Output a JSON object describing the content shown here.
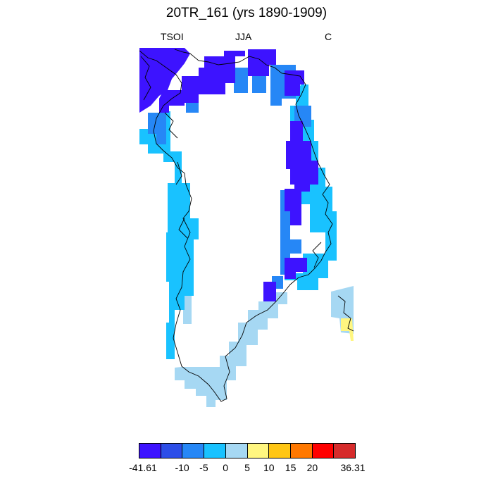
{
  "title": "20TR_161 (yrs 1890-1909)",
  "left_label": "TSOI",
  "center_label": "JJA",
  "right_label": "C",
  "colorbar": {
    "colors": [
      "#3d13ff",
      "#2d4ee8",
      "#2687f6",
      "#19c2ff",
      "#a6d8f3",
      "#fff680",
      "#ffc614",
      "#ff7800",
      "#ff0000",
      "#d62b2b"
    ],
    "labels": [
      "-41.61",
      "-10",
      "-5",
      "0",
      "5",
      "10",
      "15",
      "20",
      "36.31"
    ]
  }
}
